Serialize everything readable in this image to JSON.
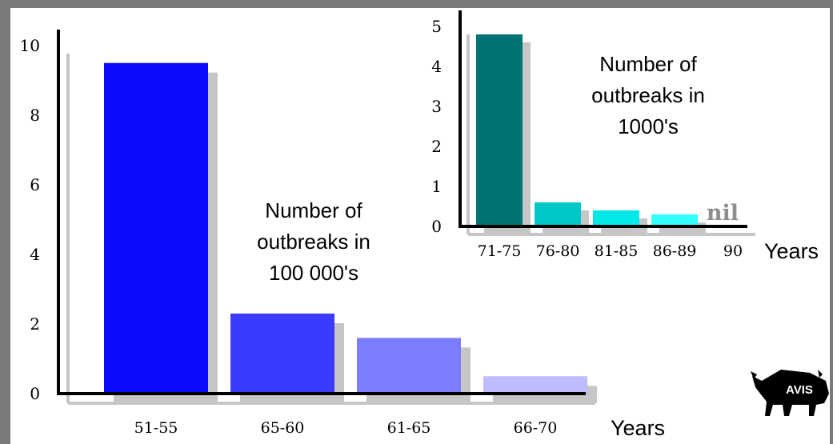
{
  "chart_data": [
    {
      "type": "bar",
      "categories": [
        "51-55",
        "65-60",
        "61-65",
        "66-70"
      ],
      "values": [
        9.5,
        2.3,
        1.6,
        0.5
      ],
      "colors": [
        "#0a0afc",
        "#3b3bff",
        "#7c7cff",
        "#bcbcff"
      ],
      "yticks": [
        "0",
        "2",
        "4",
        "6",
        "8",
        "10"
      ],
      "ylim": [
        0,
        10
      ],
      "xlabel": "Years",
      "annotation": [
        "Number of",
        "outbreaks in",
        "100 000's"
      ]
    },
    {
      "type": "bar",
      "categories": [
        "71-75",
        "76-80",
        "81-85",
        "86-89",
        "90"
      ],
      "values": [
        4.8,
        0.6,
        0.4,
        0.3,
        0
      ],
      "colors": [
        "#007474",
        "#00c8c8",
        "#00e8e8",
        "#33ffff"
      ],
      "yticks": [
        "0",
        "1",
        "2",
        "3",
        "4",
        "5"
      ],
      "ylim": [
        0,
        5
      ],
      "xlabel": "Years",
      "nil_label": "nil",
      "annotation": [
        "Number of",
        "outbreaks in",
        "1000's"
      ]
    }
  ],
  "logo": {
    "text": "AVIS",
    "icon": "bison-icon"
  }
}
